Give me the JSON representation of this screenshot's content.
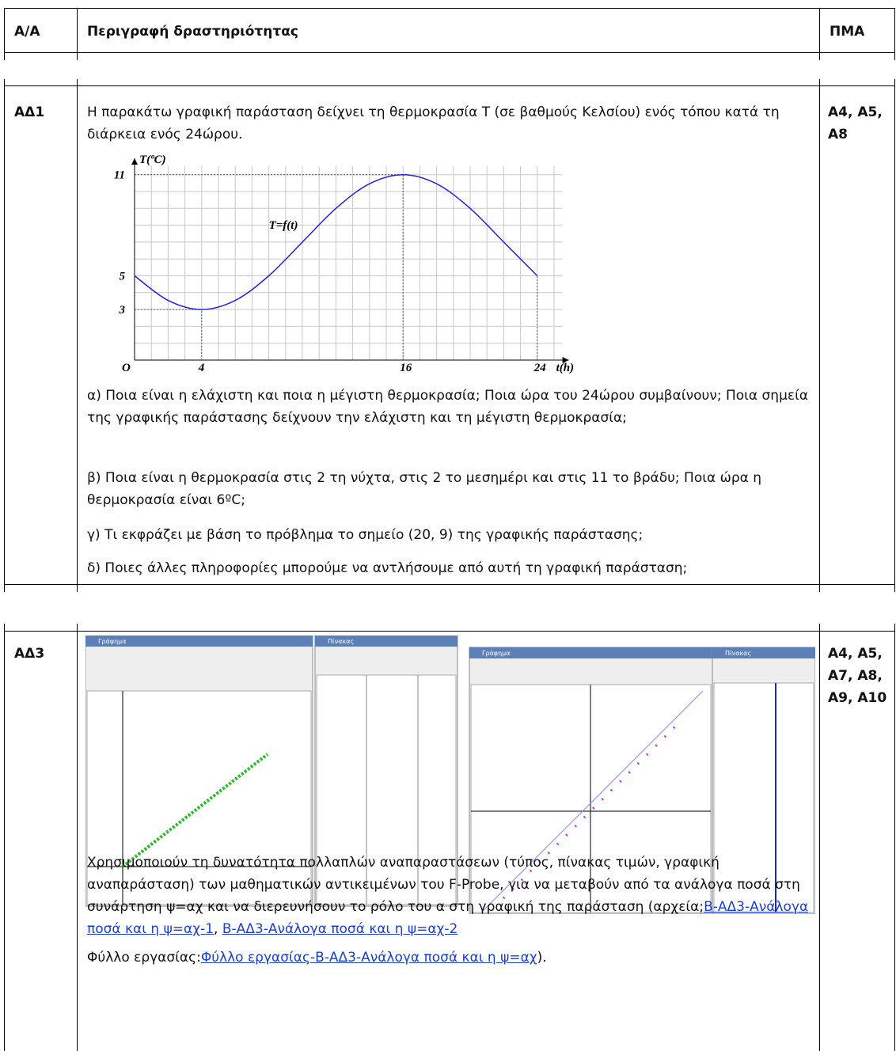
{
  "header": {
    "col1": "Α/Α",
    "col2": "Περιγραφή δραστηριότητας",
    "col3": "ΠΜΑ"
  },
  "rows": [
    {
      "id": "ΑΔ1",
      "pma": "Α4, Α5, Α8",
      "intro": "Η παρακάτω γραφική παράσταση δείχνει τη θερμοκρασία Τ (σε βαθμούς Κελσίου) ενός τόπου κατά τη διάρκεια ενός 24ώρου.",
      "questions": [
        "α) Ποια είναι η ελάχιστη και ποια η μέγιστη θερμοκρασία; Ποια ώρα του 24ώρου συμβαίνουν; Ποια σημεία της γραφικής παράστασης δείχνουν την ελάχιστη και τη μέγιστη θερμοκρασία;",
        "β) Ποια είναι η θερμοκρασία στις 2 τη νύχτα, στις 2 το μεσημέρι και στις 11 το βράδυ; Ποια ώρα η θερμοκρασία είναι 6ºC;",
        "γ) Τι εκφράζει με βάση το πρόβλημα το σημείο (20,  9) της γραφικής παράστασης;",
        "δ) Ποιες άλλες πληροφορίες μπορούμε να αντλήσουμε από αυτή τη γραφική παράσταση;"
      ]
    },
    {
      "id": "ΑΔ3",
      "pma": "Α4, Α5, Α7, Α8, Α9, Α10",
      "windows": [
        "Γράφημα",
        "Πίνακας",
        "Γράφημα",
        "Πίνακας"
      ],
      "text": "Χρησιμοποιούν τη δυνατότητα πολλαπλών αναπαραστάσεων (τύπος, πίνακας τιμών, γραφική αναπαράσταση) των μαθηματικών αντικειμένων του F-Probe, για να μεταβούν από τα ανάλογα ποσά στη συνάρτηση ψ=αχ και να διερευνήσουν το ρόλο του α στη γραφική της παράσταση (αρχεία;",
      "link1": "Β-ΑΔ3-Ανάλογα ποσά και η ψ=αχ-1",
      "sep": ", ",
      "link2": "Β-ΑΔ3-Ανάλογα ποσά και η ψ=αχ-2",
      "sheet_label": "Φύλλο εργασίας:",
      "sheet_link": "Φύλλο εργασίας-Β-ΑΔ3-Ανάλογα ποσά και η ψ=αχ",
      "sheet_end": ")."
    }
  ],
  "chart_data": {
    "type": "line",
    "y_label": "T(ºC)",
    "x_label": "t(h)",
    "origin_label": "O",
    "curve_label": "T=f(t)",
    "x": [
      0,
      2,
      4,
      6,
      8,
      10,
      12,
      14,
      16,
      18,
      20,
      22,
      24
    ],
    "values": [
      5,
      3.54,
      3,
      3.54,
      5,
      7,
      9,
      10.46,
      11,
      10.46,
      9,
      7,
      5
    ],
    "color": "#2222dd",
    "xlim": [
      0,
      25.5
    ],
    "ylim": [
      0,
      11.5
    ],
    "xticks": [
      4,
      16,
      24
    ],
    "yticks": [
      3,
      5,
      11
    ],
    "grid": true
  }
}
